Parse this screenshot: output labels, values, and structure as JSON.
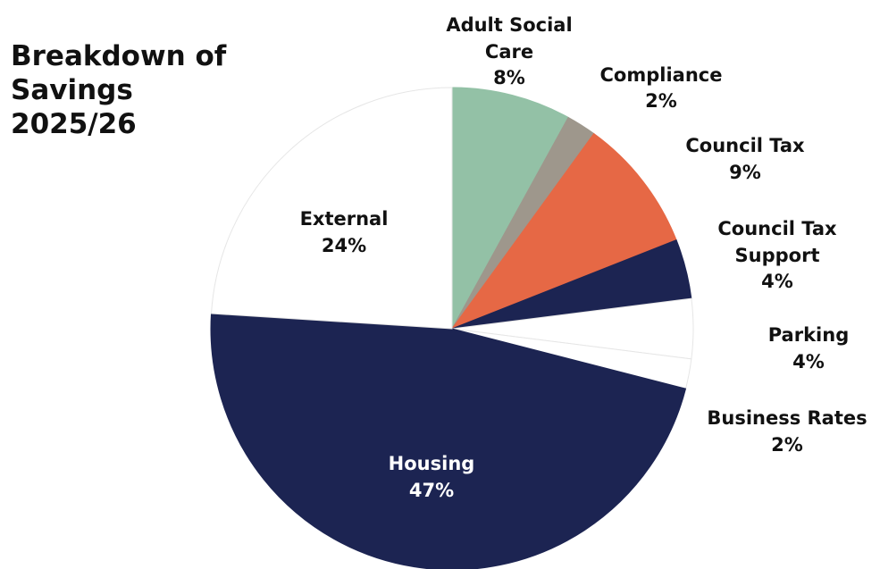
{
  "chart_data": {
    "type": "pie",
    "title": "Breakdown of Savings 2025/26",
    "categories": [
      "Adult Social Care",
      "Compliance",
      "Council Tax",
      "Council Tax Support",
      "Parking",
      "Business Rates",
      "Housing",
      "External"
    ],
    "values": [
      8,
      2,
      9,
      4,
      4,
      2,
      47,
      24
    ],
    "value_labels": [
      "8%",
      "2%",
      "9%",
      "4%",
      "4%",
      "2%",
      "47%",
      "24%"
    ],
    "colors": [
      "#93c1a6",
      "#9e978c",
      "#e66845",
      "#1c2452",
      "#ffffff",
      "#ffffff",
      "#1c2452",
      "#ffffff"
    ]
  }
}
